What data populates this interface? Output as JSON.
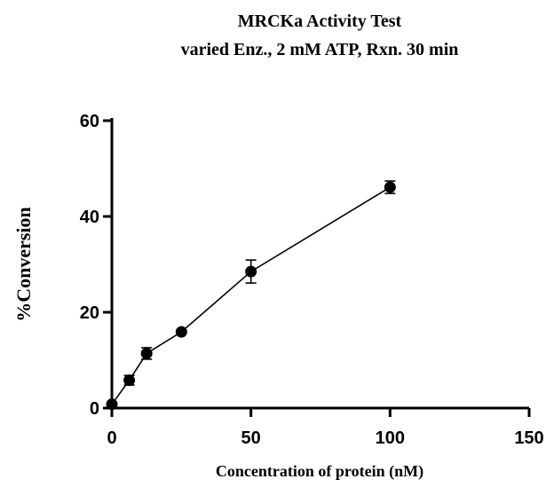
{
  "chart_data": {
    "type": "scatter",
    "title": "MRCKa Activity Test",
    "subtitle": "varied Enz., 2 mM ATP, Rxn. 30 min",
    "xlabel": "Concentration of protein (nM)",
    "ylabel": "%Conversion",
    "xlim": [
      0,
      150
    ],
    "ylim": [
      0,
      60
    ],
    "x_ticks": [
      0,
      50,
      100,
      150
    ],
    "y_ticks": [
      0,
      20,
      40,
      60
    ],
    "x_tick_labels": [
      "0",
      "50",
      "100",
      "150"
    ],
    "y_tick_labels": [
      "0",
      "20",
      "40",
      "60"
    ],
    "grid": false,
    "series": [
      {
        "marker": "filled-circle",
        "connected": true,
        "color": "#000000",
        "points": [
          {
            "x": 0,
            "y": 0.8,
            "err": 0.3
          },
          {
            "x": 6.25,
            "y": 5.8,
            "err": 1.0
          },
          {
            "x": 12.5,
            "y": 11.4,
            "err": 1.2
          },
          {
            "x": 25,
            "y": 15.9,
            "err": 0.5
          },
          {
            "x": 50,
            "y": 28.5,
            "err": 2.4
          },
          {
            "x": 100,
            "y": 46.1,
            "err": 1.3
          }
        ]
      }
    ]
  }
}
